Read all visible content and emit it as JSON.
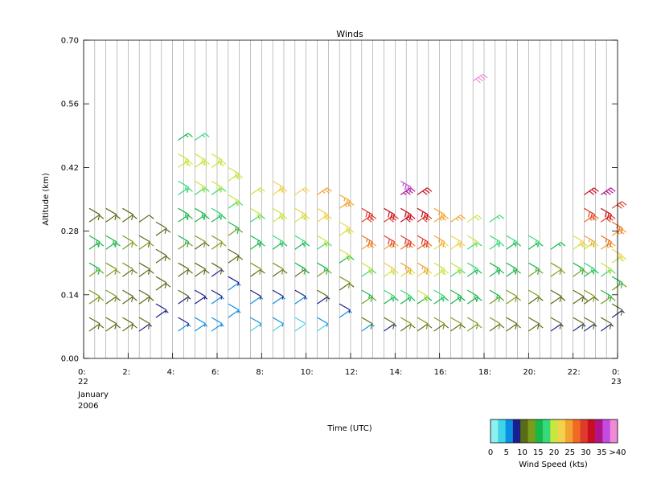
{
  "chart_data": {
    "type": "scatter",
    "title": "Winds",
    "xlabel": "Time (UTC)",
    "ylabel": "Altitude (km)",
    "ylim": [
      0.0,
      0.7
    ],
    "xlim": [
      0,
      24
    ],
    "grid": "vertical lines each half hour",
    "y_ticks": [
      "0.00",
      "0.14",
      "0.28",
      "0.42",
      "0.56",
      "0.70"
    ],
    "x_ticks": [
      "0:",
      "2:",
      "4:",
      "6:",
      "8:",
      "10:",
      "12:",
      "14:",
      "16:",
      "18:",
      "20:",
      "22:",
      "0:"
    ],
    "x_date_start": {
      "day": "22",
      "month": "January",
      "year": "2006"
    },
    "x_date_end": {
      "day": "23"
    },
    "profile_altitudes_km": [
      0.06,
      0.09,
      0.12,
      0.15,
      0.18,
      0.21,
      0.24,
      0.27,
      0.3,
      0.33,
      0.36,
      0.39,
      0.42,
      0.45,
      0.48
    ],
    "speed_classes_kts": [
      0,
      5,
      10,
      15,
      20,
      25,
      30,
      35,
      40
    ],
    "colorbar": {
      "label": "Wind Speed (kts)",
      "ticks": [
        "0",
        "5",
        "10",
        "15",
        "20",
        "25",
        "30",
        "35",
        ">40"
      ],
      "colors": [
        "#8ff0f0",
        "#3cd6e6",
        "#0b8fe3",
        "#1a1e8e",
        "#596b14",
        "#7a9c1a",
        "#17b84a",
        "#35d97a",
        "#c9e63f",
        "#f2d24c",
        "#f2a431",
        "#f06a22",
        "#e03a2a",
        "#c80f1f",
        "#b0148c",
        "#c44be0",
        "#f08ad6"
      ]
    },
    "series": [
      {
        "x": 0.25,
        "top_km": 0.33,
        "speeds_kts": [
          11,
          12,
          13,
          14,
          14,
          15,
          16,
          17,
          12,
          11
        ]
      },
      {
        "x": 1.0,
        "top_km": 0.32,
        "speeds_kts": [
          10,
          11,
          12,
          13,
          13,
          14,
          15,
          16,
          12,
          10
        ]
      },
      {
        "x": 1.75,
        "top_km": 0.32,
        "speeds_kts": [
          10,
          11,
          11,
          12,
          12,
          13,
          14,
          14,
          11,
          10
        ]
      },
      {
        "x": 2.5,
        "top_km": 0.3,
        "speeds_kts": [
          9,
          10,
          11,
          11,
          12,
          12,
          13,
          11,
          10
        ]
      },
      {
        "x": 3.25,
        "top_km": 0.28,
        "speeds_kts": [
          8,
          9,
          10,
          10,
          11,
          11,
          12,
          10
        ]
      },
      {
        "x": 4.25,
        "top_km": 0.48,
        "speeds_kts": [
          7,
          8,
          9,
          10,
          11,
          12,
          13,
          15,
          16,
          17,
          18,
          19,
          21,
          20,
          17
        ]
      },
      {
        "x": 5.0,
        "top_km": 0.47,
        "speeds_kts": [
          6,
          7,
          8,
          9,
          10,
          11,
          12,
          14,
          15,
          16,
          18,
          20,
          22,
          21,
          18
        ]
      },
      {
        "x": 5.75,
        "top_km": 0.44,
        "speeds_kts": [
          5,
          6,
          7,
          8,
          9,
          11,
          13,
          14,
          16,
          18,
          19,
          22,
          21,
          20
        ]
      },
      {
        "x": 6.5,
        "top_km": 0.4,
        "speeds_kts": [
          5,
          6,
          7,
          9,
          10,
          12,
          14,
          16,
          18,
          20,
          22,
          21
        ]
      },
      {
        "x": 7.5,
        "top_km": 0.36,
        "speeds_kts": [
          4,
          5,
          6,
          8,
          10,
          13,
          15,
          17,
          19,
          20,
          22
        ]
      },
      {
        "x": 8.5,
        "top_km": 0.38,
        "speeds_kts": [
          4,
          5,
          7,
          9,
          11,
          14,
          16,
          18,
          20,
          22,
          23,
          24
        ]
      },
      {
        "x": 9.5,
        "top_km": 0.36,
        "speeds_kts": [
          3,
          4,
          6,
          9,
          12,
          15,
          17,
          19,
          21,
          23,
          24
        ]
      },
      {
        "x": 10.5,
        "top_km": 0.35,
        "speeds_kts": [
          3,
          5,
          8,
          11,
          14,
          17,
          19,
          21,
          23,
          24,
          25
        ]
      },
      {
        "x": 11.5,
        "top_km": 0.34,
        "speeds_kts": [
          5,
          8,
          11,
          14,
          17,
          20,
          22,
          24,
          26,
          27
        ]
      },
      {
        "x": 12.5,
        "top_km": 0.33,
        "speeds_kts": [
          7,
          10,
          13,
          16,
          19,
          22,
          25,
          28,
          31,
          32
        ]
      },
      {
        "x": 13.5,
        "top_km": 0.32,
        "speeds_kts": [
          9,
          12,
          15,
          18,
          21,
          24,
          27,
          30,
          32,
          33
        ]
      },
      {
        "x": 14.25,
        "top_km": 0.36,
        "speeds_kts": [
          10,
          13,
          16,
          19,
          22,
          25,
          28,
          31,
          33,
          34,
          36,
          38
        ]
      },
      {
        "x": 15.0,
        "top_km": 0.35,
        "speeds_kts": [
          11,
          14,
          17,
          20,
          23,
          26,
          29,
          31,
          32,
          33,
          33
        ]
      },
      {
        "x": 15.75,
        "top_km": 0.32,
        "speeds_kts": [
          12,
          14,
          16,
          18,
          20,
          22,
          24,
          26,
          27,
          27
        ]
      },
      {
        "x": 16.5,
        "top_km": 0.3,
        "speeds_kts": [
          12,
          14,
          15,
          17,
          19,
          21,
          23,
          24,
          25
        ]
      },
      {
        "x": 17.25,
        "top_km": 0.28,
        "speeds_kts": [
          13,
          14,
          15,
          16,
          17,
          18,
          19,
          20,
          21
        ]
      },
      {
        "x": 17.5,
        "top_km": 0.61,
        "speeds_kts": [
          42
        ]
      },
      {
        "x": 18.25,
        "top_km": 0.27,
        "speeds_kts": [
          12,
          13,
          14,
          15,
          16,
          17,
          18,
          19,
          18
        ]
      },
      {
        "x": 19.0,
        "top_km": 0.26,
        "speeds_kts": [
          11,
          12,
          13,
          14,
          15,
          16,
          17,
          18
        ]
      },
      {
        "x": 20.0,
        "top_km": 0.24,
        "speeds_kts": [
          10,
          11,
          12,
          13,
          14,
          15,
          17,
          18
        ]
      },
      {
        "x": 21.0,
        "top_km": 0.22,
        "speeds_kts": [
          9,
          10,
          11,
          12,
          13,
          14,
          16
        ]
      },
      {
        "x": 22.0,
        "top_km": 0.24,
        "speeds_kts": [
          9,
          10,
          11,
          12,
          14,
          17,
          20,
          23
        ]
      },
      {
        "x": 22.5,
        "top_km": 0.36,
        "speeds_kts": [
          8,
          10,
          12,
          14,
          16,
          19,
          22,
          26,
          28,
          31,
          33
        ]
      },
      {
        "x": 23.25,
        "top_km": 0.36,
        "speeds_kts": [
          8,
          10,
          13,
          16,
          19,
          22,
          25,
          29,
          32,
          34,
          35
        ]
      },
      {
        "x": 23.75,
        "top_km": 0.33,
        "speeds_kts": [
          8,
          11,
          14,
          17,
          20,
          23,
          26,
          29,
          31
        ]
      }
    ]
  }
}
